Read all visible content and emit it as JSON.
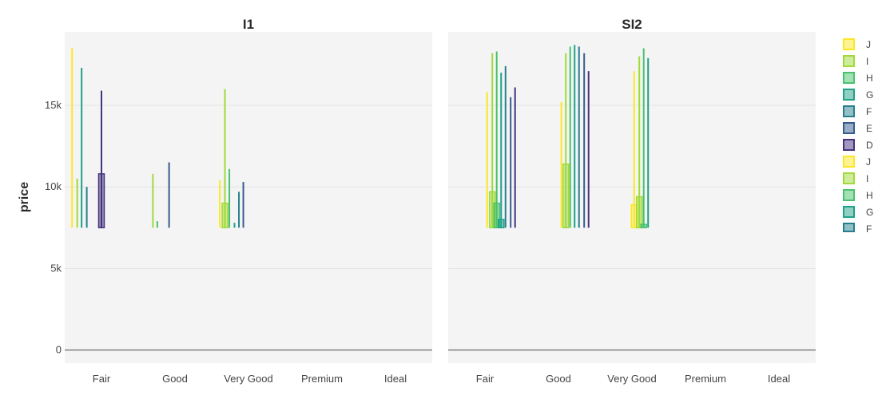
{
  "chart_data": {
    "type": "bar",
    "subtype": "faceted box plot",
    "ylabel": "price",
    "ylim": [
      -800,
      19500
    ],
    "y_ticks": [
      0,
      5000,
      10000,
      15000
    ],
    "y_tick_labels": [
      "0",
      "5k",
      "10k",
      "15k"
    ],
    "categories": [
      "Fair",
      "Good",
      "Very Good",
      "Premium",
      "Ideal"
    ],
    "box_base": 7500,
    "grid": true,
    "legend_position": "right",
    "legend": [
      {
        "name": "J",
        "color": "#fde725"
      },
      {
        "name": "I",
        "color": "#a0da39"
      },
      {
        "name": "H",
        "color": "#4ac16d"
      },
      {
        "name": "G",
        "color": "#1fa187"
      },
      {
        "name": "F",
        "color": "#277f8e"
      },
      {
        "name": "E",
        "color": "#365c8d"
      },
      {
        "name": "D",
        "color": "#46327e"
      },
      {
        "name": "J",
        "color": "#fde725"
      },
      {
        "name": "I",
        "color": "#a0da39"
      },
      {
        "name": "H",
        "color": "#4ac16d"
      },
      {
        "name": "G",
        "color": "#1fa187"
      },
      {
        "name": "F",
        "color": "#277f8e"
      }
    ],
    "panels": [
      {
        "title": "I1",
        "marks": [
          {
            "category": "Fair",
            "color": "#fde725",
            "offset": -0.4,
            "top": 18500,
            "box": null
          },
          {
            "category": "Fair",
            "color": "#a0da39",
            "offset": -0.33,
            "top": 10500,
            "box": null
          },
          {
            "category": "Fair",
            "color": "#1fa187",
            "offset": -0.27,
            "top": 17300,
            "box": null
          },
          {
            "category": "Fair",
            "color": "#277f8e",
            "offset": -0.2,
            "top": 10000,
            "box": null
          },
          {
            "category": "Fair",
            "color": "#46327e",
            "offset": 0.0,
            "top": 15900,
            "box": 10800
          },
          {
            "category": "Good",
            "color": "#a0da39",
            "offset": -0.3,
            "top": 10800,
            "box": null
          },
          {
            "category": "Good",
            "color": "#4ac16d",
            "offset": -0.24,
            "top": 7900,
            "box": null
          },
          {
            "category": "Good",
            "color": "#365c8d",
            "offset": -0.08,
            "top": 11500,
            "box": null
          },
          {
            "category": "Very Good",
            "color": "#fde725",
            "offset": -0.39,
            "top": 10400,
            "box": null
          },
          {
            "category": "Very Good",
            "color": "#a0da39",
            "offset": -0.32,
            "top": 16000,
            "box": 9000
          },
          {
            "category": "Very Good",
            "color": "#4ac16d",
            "offset": -0.26,
            "top": 11100,
            "box": null
          },
          {
            "category": "Very Good",
            "color": "#1fa187",
            "offset": -0.19,
            "top": 7800,
            "box": null
          },
          {
            "category": "Very Good",
            "color": "#277f8e",
            "offset": -0.13,
            "top": 9700,
            "box": null
          },
          {
            "category": "Very Good",
            "color": "#365c8d",
            "offset": -0.07,
            "top": 10300,
            "box": null
          }
        ]
      },
      {
        "title": "SI2",
        "marks": [
          {
            "category": "Fair",
            "color": "#fde725",
            "offset": 0.03,
            "top": 15800,
            "box": null
          },
          {
            "category": "Fair",
            "color": "#a0da39",
            "offset": 0.1,
            "top": 18200,
            "box": 9700
          },
          {
            "category": "Fair",
            "color": "#4ac16d",
            "offset": 0.16,
            "top": 18300,
            "box": 9000
          },
          {
            "category": "Fair",
            "color": "#1fa187",
            "offset": 0.22,
            "top": 17000,
            "box": 8000
          },
          {
            "category": "Fair",
            "color": "#277f8e",
            "offset": 0.28,
            "top": 17400,
            "box": null
          },
          {
            "category": "Fair",
            "color": "#365c8d",
            "offset": 0.35,
            "top": 15500,
            "box": null
          },
          {
            "category": "Fair",
            "color": "#46327e",
            "offset": 0.41,
            "top": 16100,
            "box": null
          },
          {
            "category": "Good",
            "color": "#fde725",
            "offset": 0.04,
            "top": 15200,
            "box": null
          },
          {
            "category": "Good",
            "color": "#a0da39",
            "offset": 0.1,
            "top": 18200,
            "box": 11400
          },
          {
            "category": "Good",
            "color": "#4ac16d",
            "offset": 0.16,
            "top": 18600,
            "box": null
          },
          {
            "category": "Good",
            "color": "#1fa187",
            "offset": 0.22,
            "top": 18700,
            "box": null
          },
          {
            "category": "Good",
            "color": "#277f8e",
            "offset": 0.28,
            "top": 18600,
            "box": null
          },
          {
            "category": "Good",
            "color": "#365c8d",
            "offset": 0.35,
            "top": 18200,
            "box": null
          },
          {
            "category": "Good",
            "color": "#46327e",
            "offset": 0.41,
            "top": 17100,
            "box": null
          },
          {
            "category": "Very Good",
            "color": "#fde725",
            "offset": 0.03,
            "top": 17100,
            "box": 8900
          },
          {
            "category": "Very Good",
            "color": "#a0da39",
            "offset": 0.1,
            "top": 18000,
            "box": 9400
          },
          {
            "category": "Very Good",
            "color": "#4ac16d",
            "offset": 0.16,
            "top": 18500,
            "box": 7700
          },
          {
            "category": "Very Good",
            "color": "#1fa187",
            "offset": 0.22,
            "top": 17900,
            "box": null
          }
        ]
      }
    ]
  }
}
